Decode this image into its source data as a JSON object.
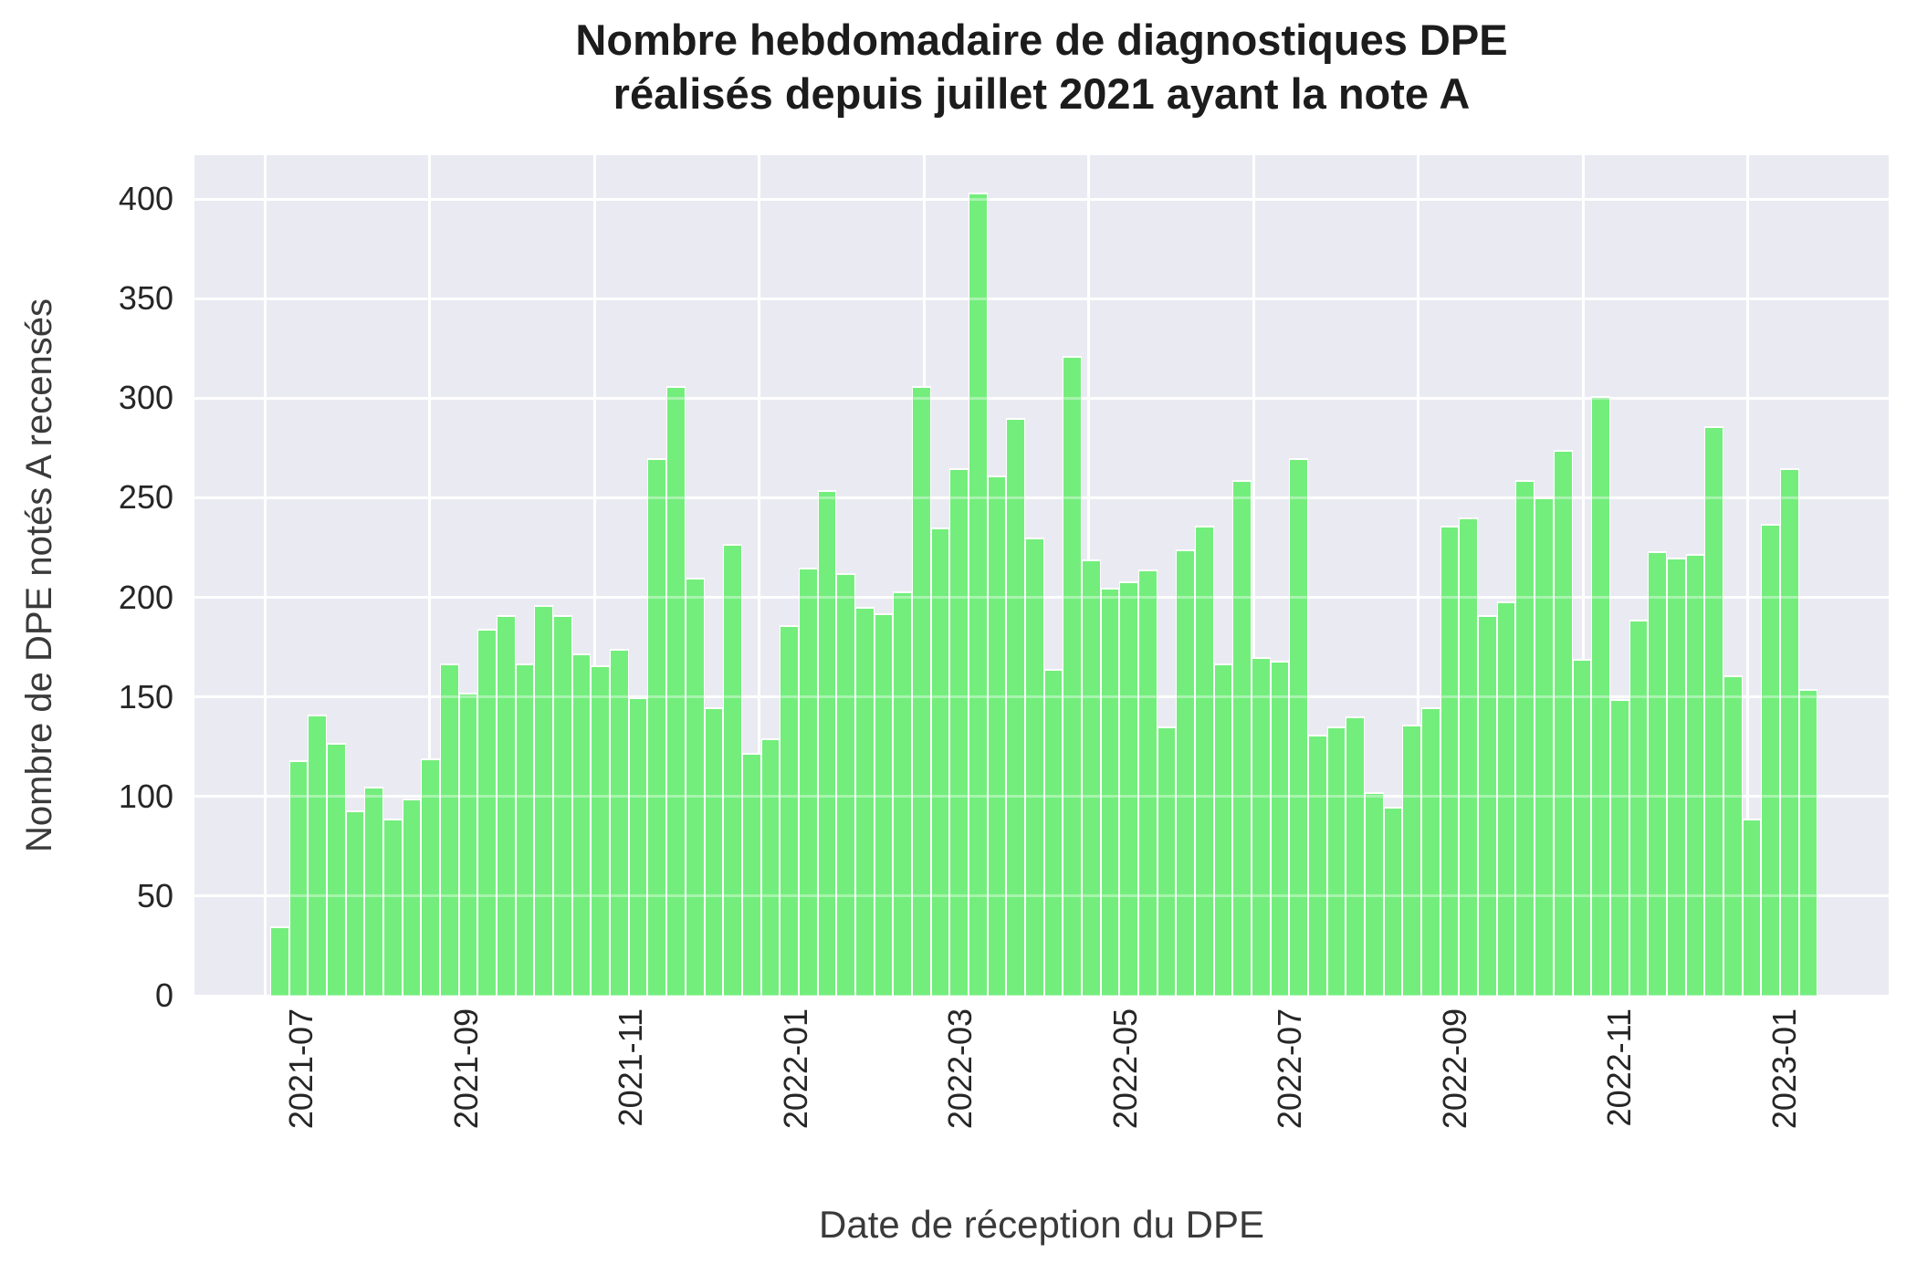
{
  "title": {
    "line1": "Nombre hebdomadaire de diagnostiques DPE",
    "line2": "réalisés depuis juillet 2021 ayant la note A"
  },
  "axes": {
    "ylabel": "Nombre de DPE notés A recensés",
    "xlabel": "Date de réception du DPE"
  },
  "chart_data": {
    "type": "bar",
    "title": "Nombre hebdomadaire de diagnostiques DPE réalisés depuis juillet 2021 ayant la note A",
    "xlabel": "Date de réception du DPE",
    "ylabel": "Nombre de DPE notés A recensés",
    "x_description": "weekly bars, first bar = first week of July 2021, one bar per week through late January 2023",
    "values": [
      35,
      118,
      141,
      127,
      93,
      105,
      89,
      99,
      119,
      167,
      152,
      184,
      191,
      167,
      196,
      191,
      172,
      166,
      174,
      150,
      270,
      306,
      210,
      145,
      227,
      122,
      129,
      186,
      215,
      254,
      212,
      195,
      192,
      203,
      306,
      235,
      265,
      403,
      261,
      290,
      230,
      164,
      321,
      219,
      205,
      208,
      214,
      135,
      224,
      236,
      167,
      259,
      170,
      168,
      270,
      131,
      135,
      140,
      102,
      95,
      136,
      145,
      236,
      240,
      191,
      198,
      259,
      250,
      274,
      169,
      301,
      149,
      189,
      223,
      220,
      222,
      286,
      161,
      89,
      237,
      265,
      154
    ],
    "yticks": [
      0,
      50,
      100,
      150,
      200,
      250,
      300,
      350,
      400
    ],
    "x_tick_labels": [
      "2021-07",
      "2021-09",
      "2021-11",
      "2022-01",
      "2022-03",
      "2022-05",
      "2022-07",
      "2022-09",
      "2022-11",
      "2023-01"
    ],
    "ylim": [
      0,
      422
    ],
    "grid": true,
    "legend": "none",
    "bar_color": "#73ee7c",
    "bar_edge_color": "#ffffff",
    "plot_background_color": "#eaeaf2",
    "grid_color": "#ffffff"
  }
}
